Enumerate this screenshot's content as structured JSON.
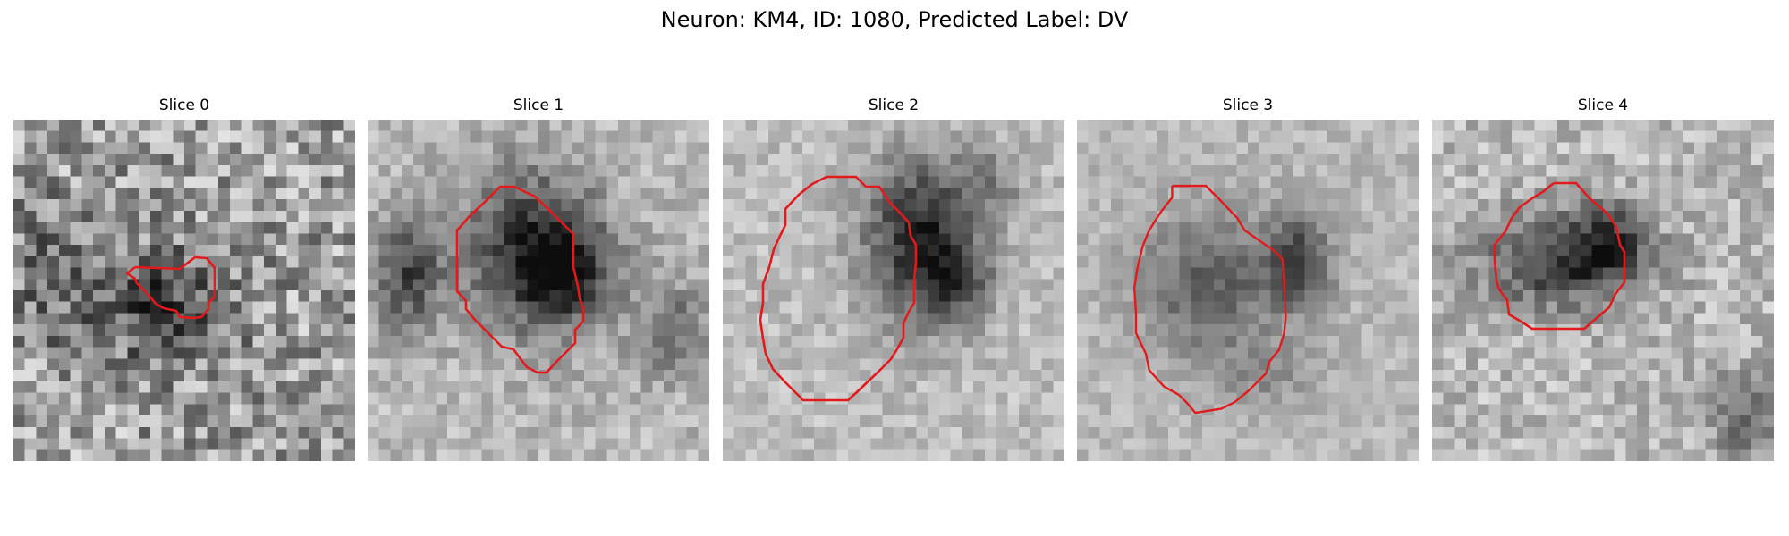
{
  "figure": {
    "title": "Neuron: KM4, ID: 1080, Predicted Label: DV"
  },
  "colors": {
    "contour": "#e31a1c",
    "background": "#ffffff"
  },
  "slices": [
    {
      "title": "Slice 0"
    },
    {
      "title": "Slice 1"
    },
    {
      "title": "Slice 2"
    },
    {
      "title": "Slice 3"
    },
    {
      "title": "Slice 4"
    }
  ]
}
